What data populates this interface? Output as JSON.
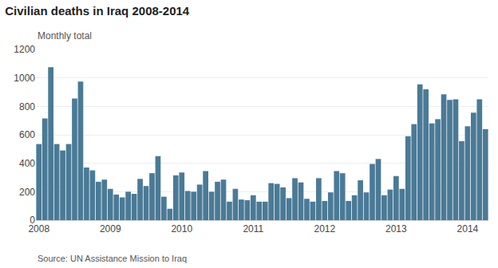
{
  "chart_data": {
    "type": "bar",
    "title": "Civilian deaths in Iraq 2008-2014",
    "subtitle": "Monthly total",
    "source": "Source: UN Assistance Mission to Iraq",
    "categories": [
      "2008",
      null,
      null,
      null,
      null,
      null,
      null,
      null,
      null,
      null,
      null,
      null,
      "2009",
      null,
      null,
      null,
      null,
      null,
      null,
      null,
      null,
      null,
      null,
      null,
      "2010",
      null,
      null,
      null,
      null,
      null,
      null,
      null,
      null,
      null,
      null,
      null,
      "2011",
      null,
      null,
      null,
      null,
      null,
      null,
      null,
      null,
      null,
      null,
      null,
      "2012",
      null,
      null,
      null,
      null,
      null,
      null,
      null,
      null,
      null,
      null,
      null,
      "2013",
      null,
      null,
      null,
      null,
      null,
      null,
      null,
      null,
      null,
      null,
      null,
      "2014",
      null,
      null,
      null
    ],
    "values": [
      535,
      715,
      1075,
      535,
      490,
      535,
      855,
      975,
      370,
      350,
      270,
      285,
      220,
      180,
      160,
      200,
      185,
      290,
      240,
      330,
      450,
      165,
      80,
      315,
      335,
      205,
      200,
      250,
      345,
      200,
      270,
      285,
      130,
      220,
      145,
      140,
      175,
      130,
      130,
      260,
      255,
      230,
      155,
      295,
      265,
      150,
      130,
      295,
      135,
      195,
      345,
      330,
      135,
      175,
      280,
      195,
      395,
      430,
      175,
      215,
      310,
      220,
      590,
      675,
      955,
      920,
      680,
      710,
      885,
      845,
      850,
      555,
      660,
      755,
      850,
      640
    ],
    "color": "#4a7a96",
    "ylim": [
      0,
      1200
    ],
    "yticks": [
      0,
      200,
      400,
      600,
      800,
      1000,
      1200
    ],
    "grid": true
  }
}
